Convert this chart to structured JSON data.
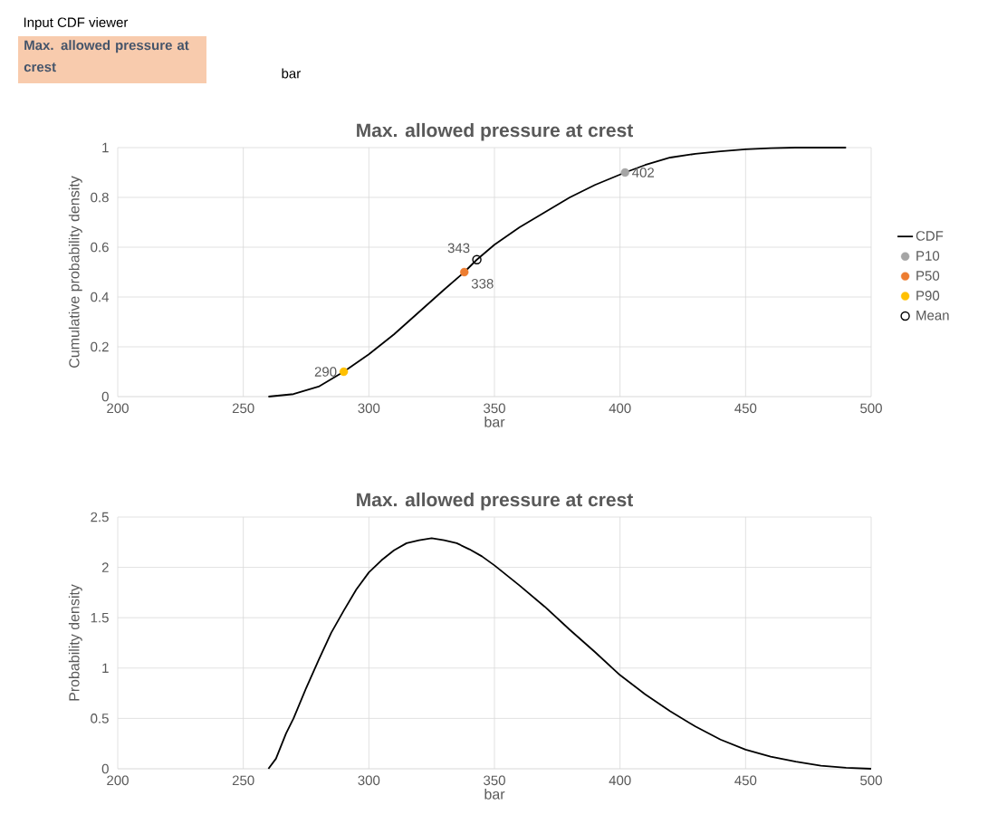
{
  "chart_data": [
    {
      "type": "line",
      "title": "Max. allowed pressure at crest",
      "xlabel": "bar",
      "ylabel": "Cumulative probability density",
      "xlim": [
        200,
        500
      ],
      "ylim": [
        0,
        1
      ],
      "xticks": [
        200,
        250,
        300,
        350,
        400,
        450,
        500
      ],
      "yticks": [
        0,
        0.2,
        0.4,
        0.6,
        0.8,
        1
      ],
      "grid": true,
      "legend": "right",
      "annotations": [
        "Input CDF viewer",
        "Max. allowed pressure at crest",
        "bar",
        {
          "text": "402",
          "x": 402,
          "y": 0.9
        },
        {
          "text": "338",
          "x": 338,
          "y": 0.5
        },
        {
          "text": "290",
          "x": 290,
          "y": 0.1
        },
        {
          "text": "343",
          "x": 343,
          "y": 0.55
        }
      ],
      "series": [
        {
          "name": "CDF",
          "color": "#000000",
          "marker": "none",
          "x": [
            260,
            270,
            280,
            290,
            300,
            310,
            320,
            330,
            338,
            343,
            350,
            360,
            370,
            380,
            390,
            402,
            410,
            420,
            430,
            440,
            450,
            460,
            470,
            490
          ],
          "values": [
            0,
            0.01,
            0.04,
            0.1,
            0.17,
            0.25,
            0.34,
            0.43,
            0.5,
            0.55,
            0.61,
            0.68,
            0.74,
            0.8,
            0.85,
            0.9,
            0.93,
            0.96,
            0.975,
            0.985,
            0.993,
            0.998,
            1,
            1
          ]
        },
        {
          "name": "P10",
          "type": "scatter",
          "color": "#a5a5a5",
          "marker": "circle",
          "x": [
            402
          ],
          "values": [
            0.9
          ]
        },
        {
          "name": "P50",
          "type": "scatter",
          "color": "#ed7d31",
          "marker": "circle",
          "x": [
            338
          ],
          "values": [
            0.5
          ]
        },
        {
          "name": "P90",
          "type": "scatter",
          "color": "#ffc000",
          "marker": "circle",
          "x": [
            290
          ],
          "values": [
            0.1
          ]
        },
        {
          "name": "Mean",
          "type": "scatter",
          "color": "#000000",
          "marker": "circle",
          "x": [
            343
          ],
          "values": [
            0.55
          ]
        }
      ]
    },
    {
      "type": "line",
      "title": "Max. allowed pressure at crest",
      "xlabel": "bar",
      "ylabel": "Probability density",
      "xlim": [
        200,
        500
      ],
      "ylim": [
        0,
        2.5
      ],
      "xticks": [
        200,
        250,
        300,
        350,
        400,
        450,
        500
      ],
      "yticks": [
        0,
        0.5,
        1,
        1.5,
        2,
        2.5
      ],
      "grid": true,
      "series": [
        {
          "color": "#000000",
          "marker": "none",
          "x": [
            260,
            263,
            267,
            270,
            275,
            280,
            285,
            290,
            295,
            300,
            305,
            310,
            315,
            320,
            325,
            330,
            335,
            340,
            345,
            350,
            360,
            370,
            380,
            390,
            400,
            410,
            420,
            430,
            440,
            450,
            460,
            470,
            480,
            490,
            500
          ],
          "values": [
            0,
            0.1,
            0.35,
            0.5,
            0.8,
            1.08,
            1.35,
            1.57,
            1.78,
            1.95,
            2.07,
            2.17,
            2.24,
            2.27,
            2.29,
            2.27,
            2.24,
            2.18,
            2.11,
            2.02,
            1.82,
            1.61,
            1.38,
            1.16,
            0.93,
            0.74,
            0.57,
            0.42,
            0.29,
            0.19,
            0.12,
            0.07,
            0.03,
            0.01,
            0
          ]
        }
      ]
    }
  ]
}
